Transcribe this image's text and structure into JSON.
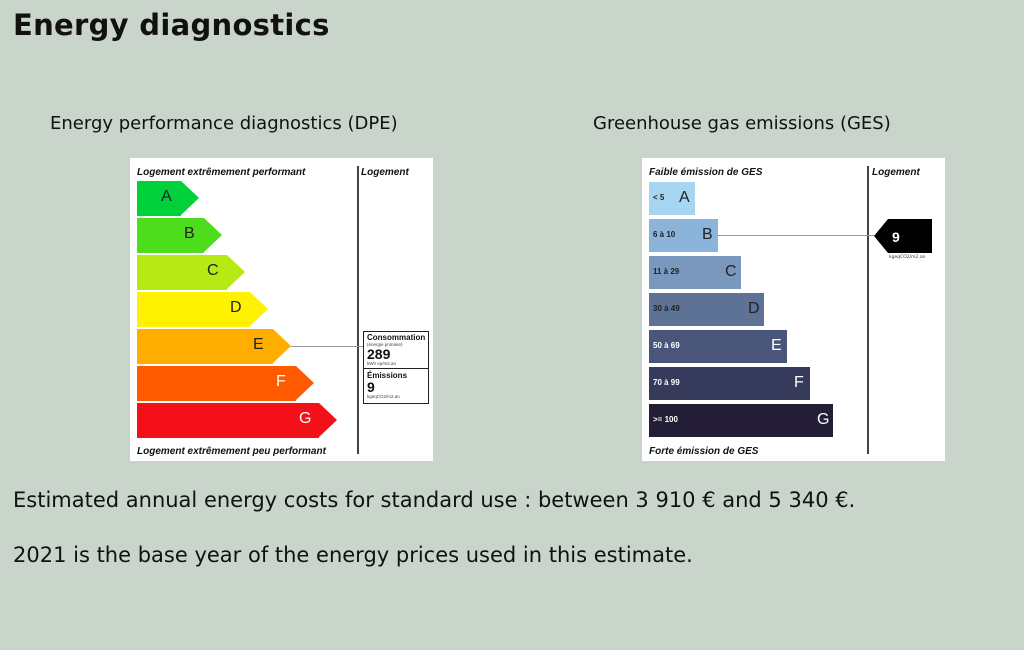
{
  "page": {
    "title": "Energy diagnostics",
    "cost_text": "Estimated annual energy costs for standard use : between 3 910 € and 5 340 €.",
    "base_year_text": "2021 is the base year of the energy prices used in this estimate."
  },
  "dpe": {
    "title": "Energy performance diagnostics (DPE)",
    "top_label": "Logement extrêmement performant",
    "bottom_label": "Logement extrêmement peu performant",
    "column_label": "Logement",
    "current_class": "E",
    "classes": [
      {
        "letter": "A",
        "color": "#00d13a",
        "text_color": "#222222"
      },
      {
        "letter": "B",
        "color": "#4ddd1d",
        "text_color": "#222222"
      },
      {
        "letter": "C",
        "color": "#b7ea14",
        "text_color": "#222222"
      },
      {
        "letter": "D",
        "color": "#fff200",
        "text_color": "#222222"
      },
      {
        "letter": "E",
        "color": "#ffae00",
        "text_color": "#222222"
      },
      {
        "letter": "F",
        "color": "#ff5a00",
        "text_color": "#ffffff"
      },
      {
        "letter": "G",
        "color": "#f41019",
        "text_color": "#ffffff"
      }
    ],
    "box": {
      "consumption_label": "Consommation",
      "consumption_sub": "(énergie primaire)",
      "consumption_value": "289",
      "consumption_unit": "kWh ep/m2.an",
      "emissions_label": "Émissions",
      "emissions_value": "9",
      "emissions_unit": "kgeqCO2/m2.an"
    }
  },
  "ges": {
    "title": "Greenhouse gas emissions (GES)",
    "top_label": "Faible émission de GES",
    "bottom_label": "Forte émission de GES",
    "column_label": "Logement",
    "current_class": "B",
    "marker_value": "9",
    "marker_unit": "kgeqCO2/m2.an",
    "classes": [
      {
        "letter": "A",
        "range": "< 5",
        "color": "#a6d6f2",
        "text_color": "#222222"
      },
      {
        "letter": "B",
        "range": "6 à 10",
        "color": "#8cb3d9",
        "text_color": "#222222"
      },
      {
        "letter": "C",
        "range": "11 à 29",
        "color": "#7a98bd",
        "text_color": "#222222"
      },
      {
        "letter": "D",
        "range": "30 à 49",
        "color": "#5e7296",
        "text_color": "#222222"
      },
      {
        "letter": "E",
        "range": "50 à 69",
        "color": "#49567a",
        "text_color": "#ffffff"
      },
      {
        "letter": "F",
        "range": "70 à 99",
        "color": "#363b5c",
        "text_color": "#ffffff"
      },
      {
        "letter": "G",
        "range": ">= 100",
        "color": "#241d36",
        "text_color": "#ffffff"
      }
    ]
  }
}
